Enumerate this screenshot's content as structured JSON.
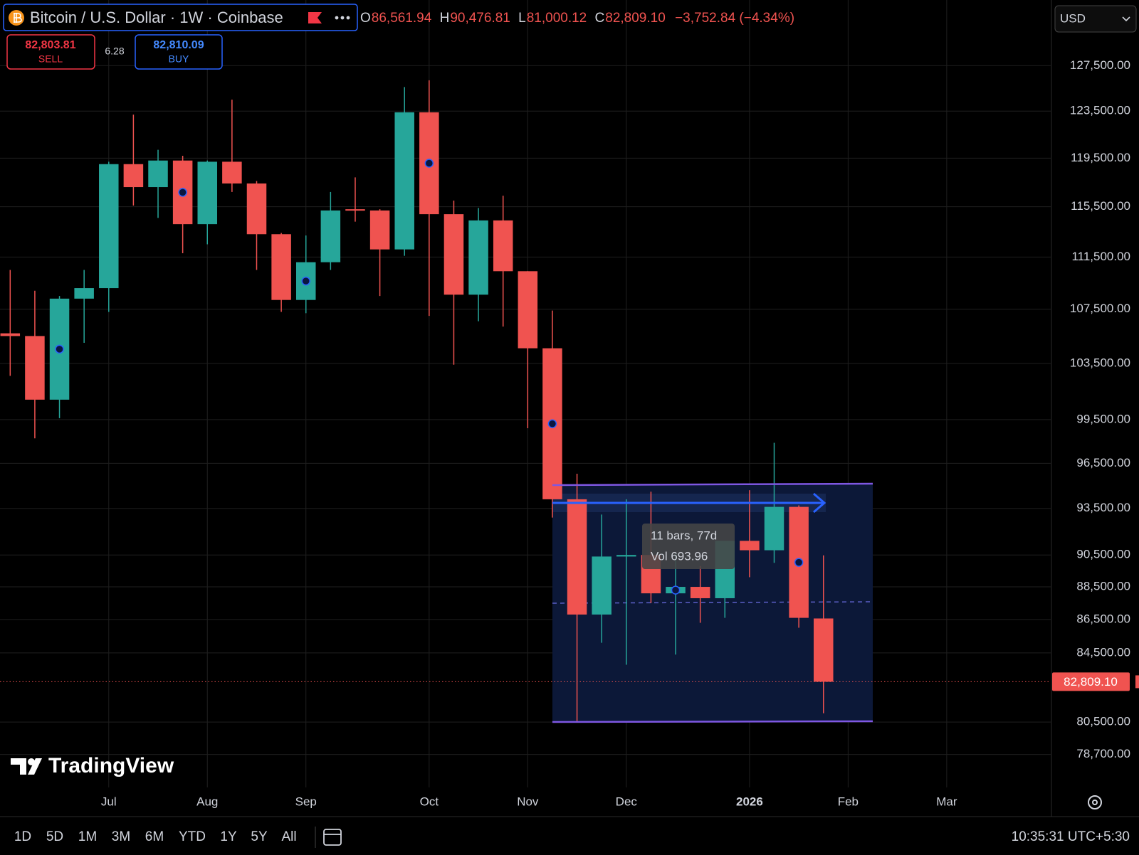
{
  "chart_data": {
    "type": "candlestick",
    "title": "Bitcoin / U.S. Dollar · 1W · Coinbase",
    "legend": {
      "open_label": "O",
      "open": "86,561.94",
      "high_label": "H",
      "high": "90,476.81",
      "low_label": "L",
      "low": "81,000.12",
      "close_label": "C",
      "close": "82,809.10",
      "change": "−3,752.84 (−4.34%)"
    },
    "categories": [
      null,
      null,
      null,
      null,
      "Jul",
      null,
      null,
      null,
      "Aug",
      null,
      null,
      null,
      "Sep",
      null,
      null,
      null,
      null,
      "Oct",
      null,
      null,
      null,
      "Nov",
      null,
      null,
      null,
      "Dec",
      null,
      null,
      null,
      null,
      "2026",
      null,
      null,
      null,
      "Feb",
      null,
      null,
      null,
      "Mar"
    ],
    "open": [
      105700,
      105500,
      100900,
      108300,
      109100,
      119000,
      117100,
      119300,
      114100,
      119200,
      117400,
      113300,
      108200,
      111100,
      115300,
      115200,
      112100,
      123400,
      114900,
      108600,
      114400,
      110400,
      104600,
      94100,
      86800,
      90400,
      90500,
      88100,
      88500,
      87800,
      91400,
      90800,
      93600,
      86561.94,
      null,
      null,
      null,
      null,
      null
    ],
    "high": [
      110500,
      108900,
      108500,
      110500,
      119200,
      123200,
      120200,
      119700,
      119300,
      124500,
      117600,
      113400,
      113200,
      116700,
      117900,
      115300,
      125600,
      126200,
      116000,
      115400,
      116400,
      110400,
      107400,
      95800,
      93100,
      94100,
      94600,
      90600,
      89800,
      91400,
      94700,
      97900,
      93700,
      90476.81,
      null,
      null,
      null,
      null,
      null
    ],
    "low": [
      102600,
      98200,
      99600,
      105000,
      107300,
      115600,
      114600,
      111800,
      112500,
      116700,
      110500,
      107300,
      107200,
      110500,
      114300,
      108500,
      111600,
      107000,
      103400,
      106600,
      106200,
      98900,
      92900,
      80500,
      85100,
      83800,
      87500,
      84400,
      86300,
      86600,
      89100,
      90000,
      86000,
      81000.12,
      null,
      null,
      null,
      null,
      null
    ],
    "close": [
      105500,
      100900,
      108300,
      109100,
      119000,
      117100,
      119300,
      114100,
      119200,
      117400,
      113300,
      108200,
      111100,
      115200,
      115200,
      112100,
      123400,
      114900,
      108600,
      114400,
      110400,
      104600,
      94100,
      86800,
      90400,
      90500,
      88100,
      88500,
      87800,
      91400,
      90800,
      93600,
      86600,
      82809.1,
      null,
      null,
      null,
      null,
      null
    ],
    "up_color": "#26a69a",
    "down_color": "#f05350",
    "ylim": [
      76900,
      133500
    ],
    "log_scale": true,
    "grid": true,
    "yticks": [
      {
        "value": 127500,
        "label": "127,500.00"
      },
      {
        "value": 123500,
        "label": "123,500.00"
      },
      {
        "value": 119500,
        "label": "119,500.00"
      },
      {
        "value": 115500,
        "label": "115,500.00"
      },
      {
        "value": 111500,
        "label": "111,500.00"
      },
      {
        "value": 107500,
        "label": "107,500.00"
      },
      {
        "value": 103500,
        "label": "103,500.00"
      },
      {
        "value": 99500,
        "label": "99,500.00"
      },
      {
        "value": 96500,
        "label": "96,500.00"
      },
      {
        "value": 93500,
        "label": "93,500.00"
      },
      {
        "value": 90500,
        "label": "90,500.00"
      },
      {
        "value": 88500,
        "label": "88,500.00"
      },
      {
        "value": 86500,
        "label": "86,500.00"
      },
      {
        "value": 84500,
        "label": "84,500.00"
      },
      {
        "value": 80500,
        "label": "80,500.00"
      },
      {
        "value": 78700,
        "label": "78,700.00"
      }
    ],
    "last_price": {
      "value": 82809.1,
      "label": "82,809.10"
    }
  },
  "trade": {
    "sell_price": "82,803.81",
    "sell": "SELL",
    "spread": "6.28",
    "buy_price": "82,810.09",
    "buy": "BUY"
  },
  "currency": "USD",
  "measure": {
    "bars": "11 bars, 77d",
    "volume": "Vol 693.96"
  },
  "logo": "TradingView",
  "ranges": [
    "1D",
    "5D",
    "1M",
    "3M",
    "6M",
    "YTD",
    "1Y",
    "5Y",
    "All"
  ],
  "clock": "10:35:31 UTC+5:30"
}
